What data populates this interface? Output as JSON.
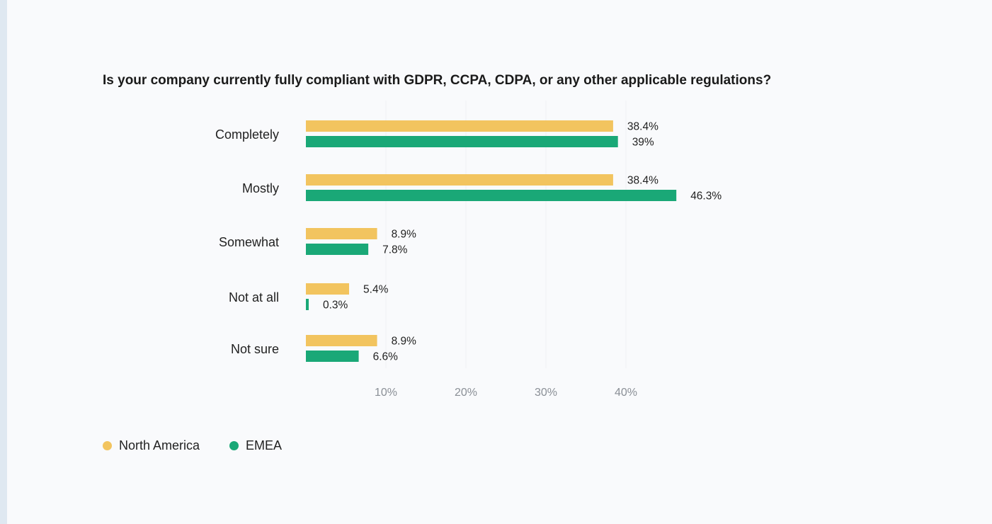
{
  "chart_data": {
    "type": "bar",
    "orientation": "horizontal",
    "title": "Is your company currently fully compliant with GDPR, CCPA, CDPA, or any other applicable regulations?",
    "categories": [
      "Completely",
      "Mostly",
      "Somewhat",
      "Not at all",
      "Not sure"
    ],
    "series": [
      {
        "name": "North America",
        "color": "#f2c45f",
        "values": [
          38.4,
          38.4,
          8.9,
          5.4,
          8.9
        ],
        "labels": [
          "38.4%",
          "38.4%",
          "8.9%",
          "5.4%",
          "8.9%"
        ]
      },
      {
        "name": "EMEA",
        "color": "#1aa877",
        "values": [
          39,
          46.3,
          7.8,
          0.3,
          6.6
        ],
        "labels": [
          "39%",
          "46.3%",
          "7.8%",
          "0.3%",
          "6.6%"
        ]
      }
    ],
    "xticks": [
      10,
      20,
      30,
      40
    ],
    "xtick_labels": [
      "10%",
      "20%",
      "30%",
      "40%"
    ],
    "xlim": [
      0,
      48
    ],
    "grid": true,
    "legend_position": "bottom-left"
  }
}
